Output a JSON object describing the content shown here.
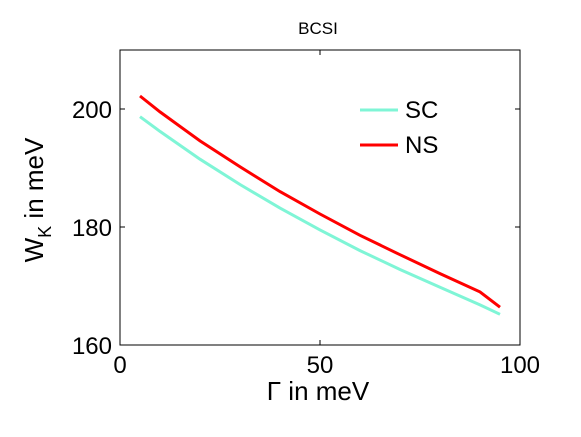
{
  "chart_data": {
    "type": "line",
    "title": "BCSI",
    "xlabel": "Γ in meV",
    "ylabel_main": "W",
    "ylabel_sub": "K",
    "ylabel_rest": " in meV",
    "xlim": [
      0,
      100
    ],
    "ylim": [
      160,
      210
    ],
    "xticks": [
      0,
      50,
      100
    ],
    "yticks": [
      160,
      180,
      200
    ],
    "grid": false,
    "legend_position": "top-right",
    "series": [
      {
        "name": "SC",
        "color": "#7ff5d6",
        "x": [
          5,
          10,
          20,
          30,
          40,
          50,
          60,
          70,
          80,
          90,
          95
        ],
        "y": [
          198.7,
          196.2,
          191.5,
          187.2,
          183.2,
          179.5,
          176.0,
          172.8,
          169.8,
          166.8,
          165.2
        ]
      },
      {
        "name": "NS",
        "color": "#ff0000",
        "x": [
          5,
          10,
          20,
          30,
          40,
          50,
          60,
          70,
          80,
          90,
          95
        ],
        "y": [
          202.2,
          199.5,
          194.6,
          190.2,
          186.0,
          182.2,
          178.6,
          175.3,
          172.1,
          169.0,
          166.4
        ]
      }
    ]
  }
}
